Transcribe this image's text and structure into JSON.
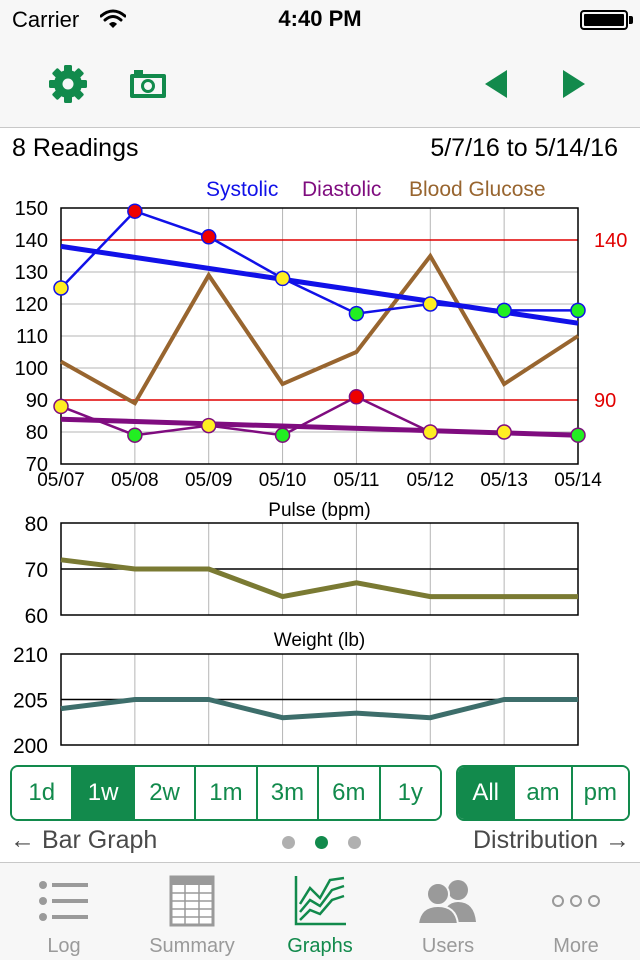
{
  "status": {
    "carrier": "Carrier",
    "time": "4:40 PM"
  },
  "header": {
    "readings": "8 Readings",
    "date_range": "5/7/16 to 5/14/16"
  },
  "legend": {
    "systolic": "Systolic",
    "diastolic": "Diastolic",
    "glucose": "Blood Glucose"
  },
  "colors": {
    "accent": "#128a4c",
    "systolic": "#1111e8",
    "diastolic": "#7f0c7f",
    "glucose": "#98652f",
    "limit": "#e10000",
    "pulse": "#7a7a33",
    "weight": "#3d6e6b"
  },
  "chart_data": [
    {
      "type": "line",
      "x": [
        "05/07",
        "05/08",
        "05/09",
        "05/10",
        "05/11",
        "05/12",
        "05/13",
        "05/14"
      ],
      "x_ticks": [
        "05/07",
        "05/08",
        "05/09",
        "05/10",
        "05/11",
        "05/12",
        "05/13",
        "05/14"
      ],
      "ylim": [
        70,
        150
      ],
      "y_ticks": [
        "150",
        "140",
        "130",
        "120",
        "110",
        "100",
        "90",
        "80",
        "70"
      ],
      "grid": true,
      "legend": "top-right",
      "reference_lines": [
        {
          "value": 140,
          "label": "140"
        },
        {
          "value": 90,
          "label": "90"
        }
      ],
      "series": [
        {
          "name": "Systolic",
          "values": [
            125,
            149,
            141,
            128,
            117,
            120,
            118,
            118
          ],
          "trend": [
            138,
            114
          ]
        },
        {
          "name": "Diastolic",
          "values": [
            88,
            79,
            82,
            79,
            91,
            80,
            80,
            79
          ],
          "trend": [
            84,
            79
          ]
        },
        {
          "name": "Blood Glucose",
          "values": [
            102,
            89,
            129,
            95,
            105,
            135,
            95,
            110
          ]
        }
      ]
    },
    {
      "type": "line",
      "title": "Pulse (bpm)",
      "ylim": [
        60,
        80
      ],
      "y_ticks": [
        "80",
        "70",
        "60"
      ],
      "values": [
        72,
        70,
        70,
        64,
        67,
        64,
        64,
        64
      ]
    },
    {
      "type": "line",
      "title": "Weight (lb)",
      "ylim": [
        200,
        210
      ],
      "y_ticks": [
        "210",
        "205",
        "200"
      ],
      "values": [
        204,
        205,
        205,
        203,
        203.5,
        203,
        205,
        205
      ]
    }
  ],
  "ranges": [
    "1d",
    "1w",
    "2w",
    "1m",
    "3m",
    "6m",
    "1y"
  ],
  "times": [
    "All",
    "am",
    "pm"
  ],
  "nav": {
    "left": "← Bar Graph",
    "right": "Distribution →"
  },
  "tabs": [
    {
      "label": "Log",
      "icon": "list-icon"
    },
    {
      "label": "Summary",
      "icon": "table-icon"
    },
    {
      "label": "Graphs",
      "icon": "graph-icon"
    },
    {
      "label": "Users",
      "icon": "users-icon"
    },
    {
      "label": "More",
      "icon": "more-icon"
    }
  ]
}
